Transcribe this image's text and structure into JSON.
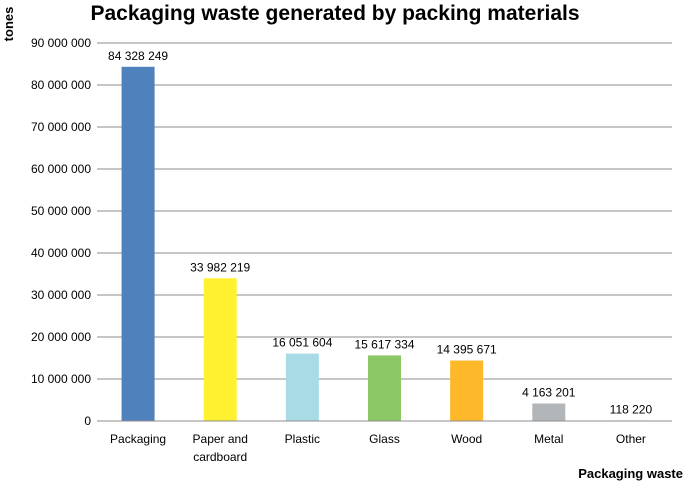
{
  "chart_data": {
    "type": "bar",
    "title": "Packaging waste generated by packing materials",
    "xlabel": "Packaging waste",
    "ylabel": "tones",
    "categories": [
      "Packaging",
      "Paper and cardboard",
      "Plastic",
      "Glass",
      "Wood",
      "Metal",
      "Other"
    ],
    "values": [
      84328249,
      33982219,
      16051604,
      15617334,
      14395671,
      4163201,
      118220
    ],
    "value_labels": [
      "84 328 249",
      "33 982 219",
      "16 051 604",
      "15 617 334",
      "14 395 671",
      "4 163 201",
      "118 220"
    ],
    "colors": [
      "#4f81bd",
      "#fff12f",
      "#a8dbe5",
      "#8cc966",
      "#fdb92a",
      "#b3b6b8",
      "#d9d9d9"
    ],
    "ylim": [
      0,
      90000000
    ],
    "yticks": [
      0,
      10000000,
      20000000,
      30000000,
      40000000,
      50000000,
      60000000,
      70000000,
      80000000,
      90000000
    ],
    "ytick_labels": [
      "0",
      "10 000 000",
      "20 000 000",
      "30 000 000",
      "40 000 000",
      "50 000 000",
      "60 000 000",
      "70 000 000",
      "80 000 000",
      "90 000 000"
    ],
    "grid": true,
    "legend": "none"
  }
}
